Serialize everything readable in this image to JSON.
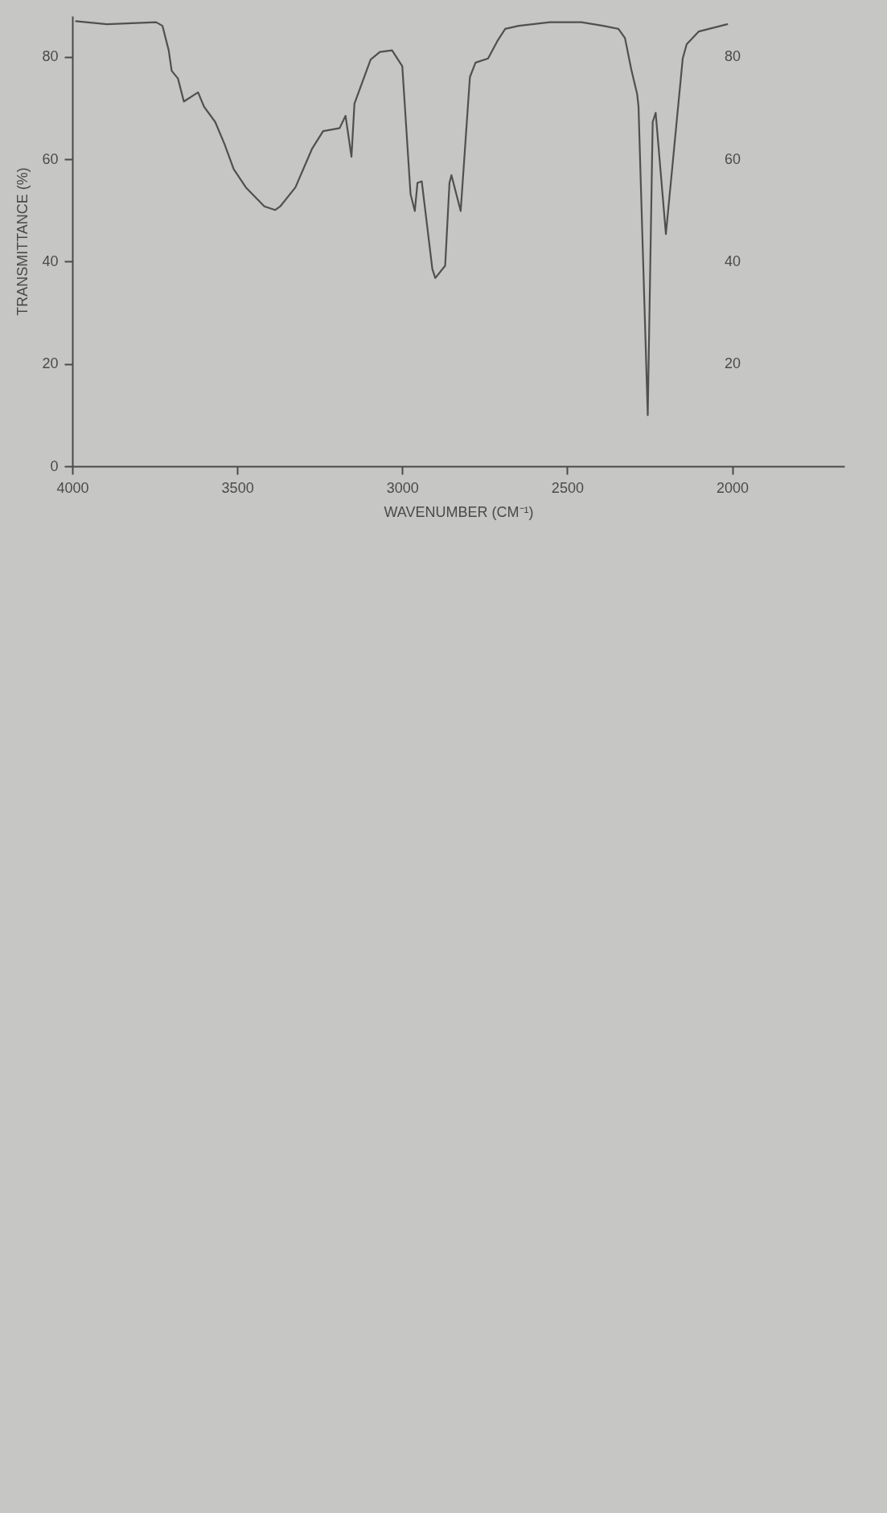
{
  "chart_data": {
    "type": "line",
    "xlabel": "WAVENUMBER (CM⁻¹)",
    "ylabel": "TRANSMITTANCE (%)",
    "x": [
      3989,
      3895,
      3746,
      3727,
      3708,
      3699,
      3680,
      3662,
      3619,
      3601,
      3567,
      3539,
      3511,
      3474,
      3418,
      3385,
      3370,
      3324,
      3274,
      3240,
      3190,
      3172,
      3154,
      3145,
      3096,
      3068,
      3031,
      3000,
      2975,
      2962,
      2954,
      2941,
      2909,
      2900,
      2870,
      2857,
      2851,
      2823,
      2795,
      2778,
      2740,
      2712,
      2688,
      2647,
      2553,
      2457,
      2391,
      2345,
      2325,
      2306,
      2288,
      2284,
      2256,
      2241,
      2232,
      2201,
      2150,
      2138,
      2101,
      2015
    ],
    "series": [
      {
        "color": "#505050",
        "values": [
          87.0,
          86.4,
          86.8,
          86.1,
          81.3,
          77.3,
          75.8,
          71.3,
          73.1,
          70.3,
          67.3,
          63.0,
          58.1,
          54.5,
          50.8,
          50.1,
          50.8,
          54.5,
          62.0,
          65.5,
          66.1,
          68.5,
          60.5,
          70.9,
          79.5,
          81.0,
          81.3,
          78.2,
          53.2,
          49.9,
          55.4,
          55.7,
          38.6,
          36.8,
          39.2,
          55.4,
          56.9,
          49.9,
          76.1,
          78.9,
          79.7,
          83.1,
          85.5,
          86.1,
          86.8,
          86.8,
          86.1,
          85.5,
          83.7,
          77.6,
          72.7,
          70.3,
          10.0,
          67.3,
          69.1,
          45.4,
          79.7,
          82.5,
          85.0,
          86.4
        ]
      }
    ],
    "xlim": [
      4000,
      1660
    ],
    "xticks": [
      4000,
      3500,
      3000,
      2500,
      2000
    ],
    "ylim": [
      0,
      88
    ],
    "yticks": [
      0,
      20,
      40,
      60,
      80
    ],
    "y2lim": [
      0,
      88
    ],
    "y2ticks": [
      20,
      40,
      60,
      80
    ],
    "grid": false,
    "marker": "none",
    "line_style": "solid"
  }
}
